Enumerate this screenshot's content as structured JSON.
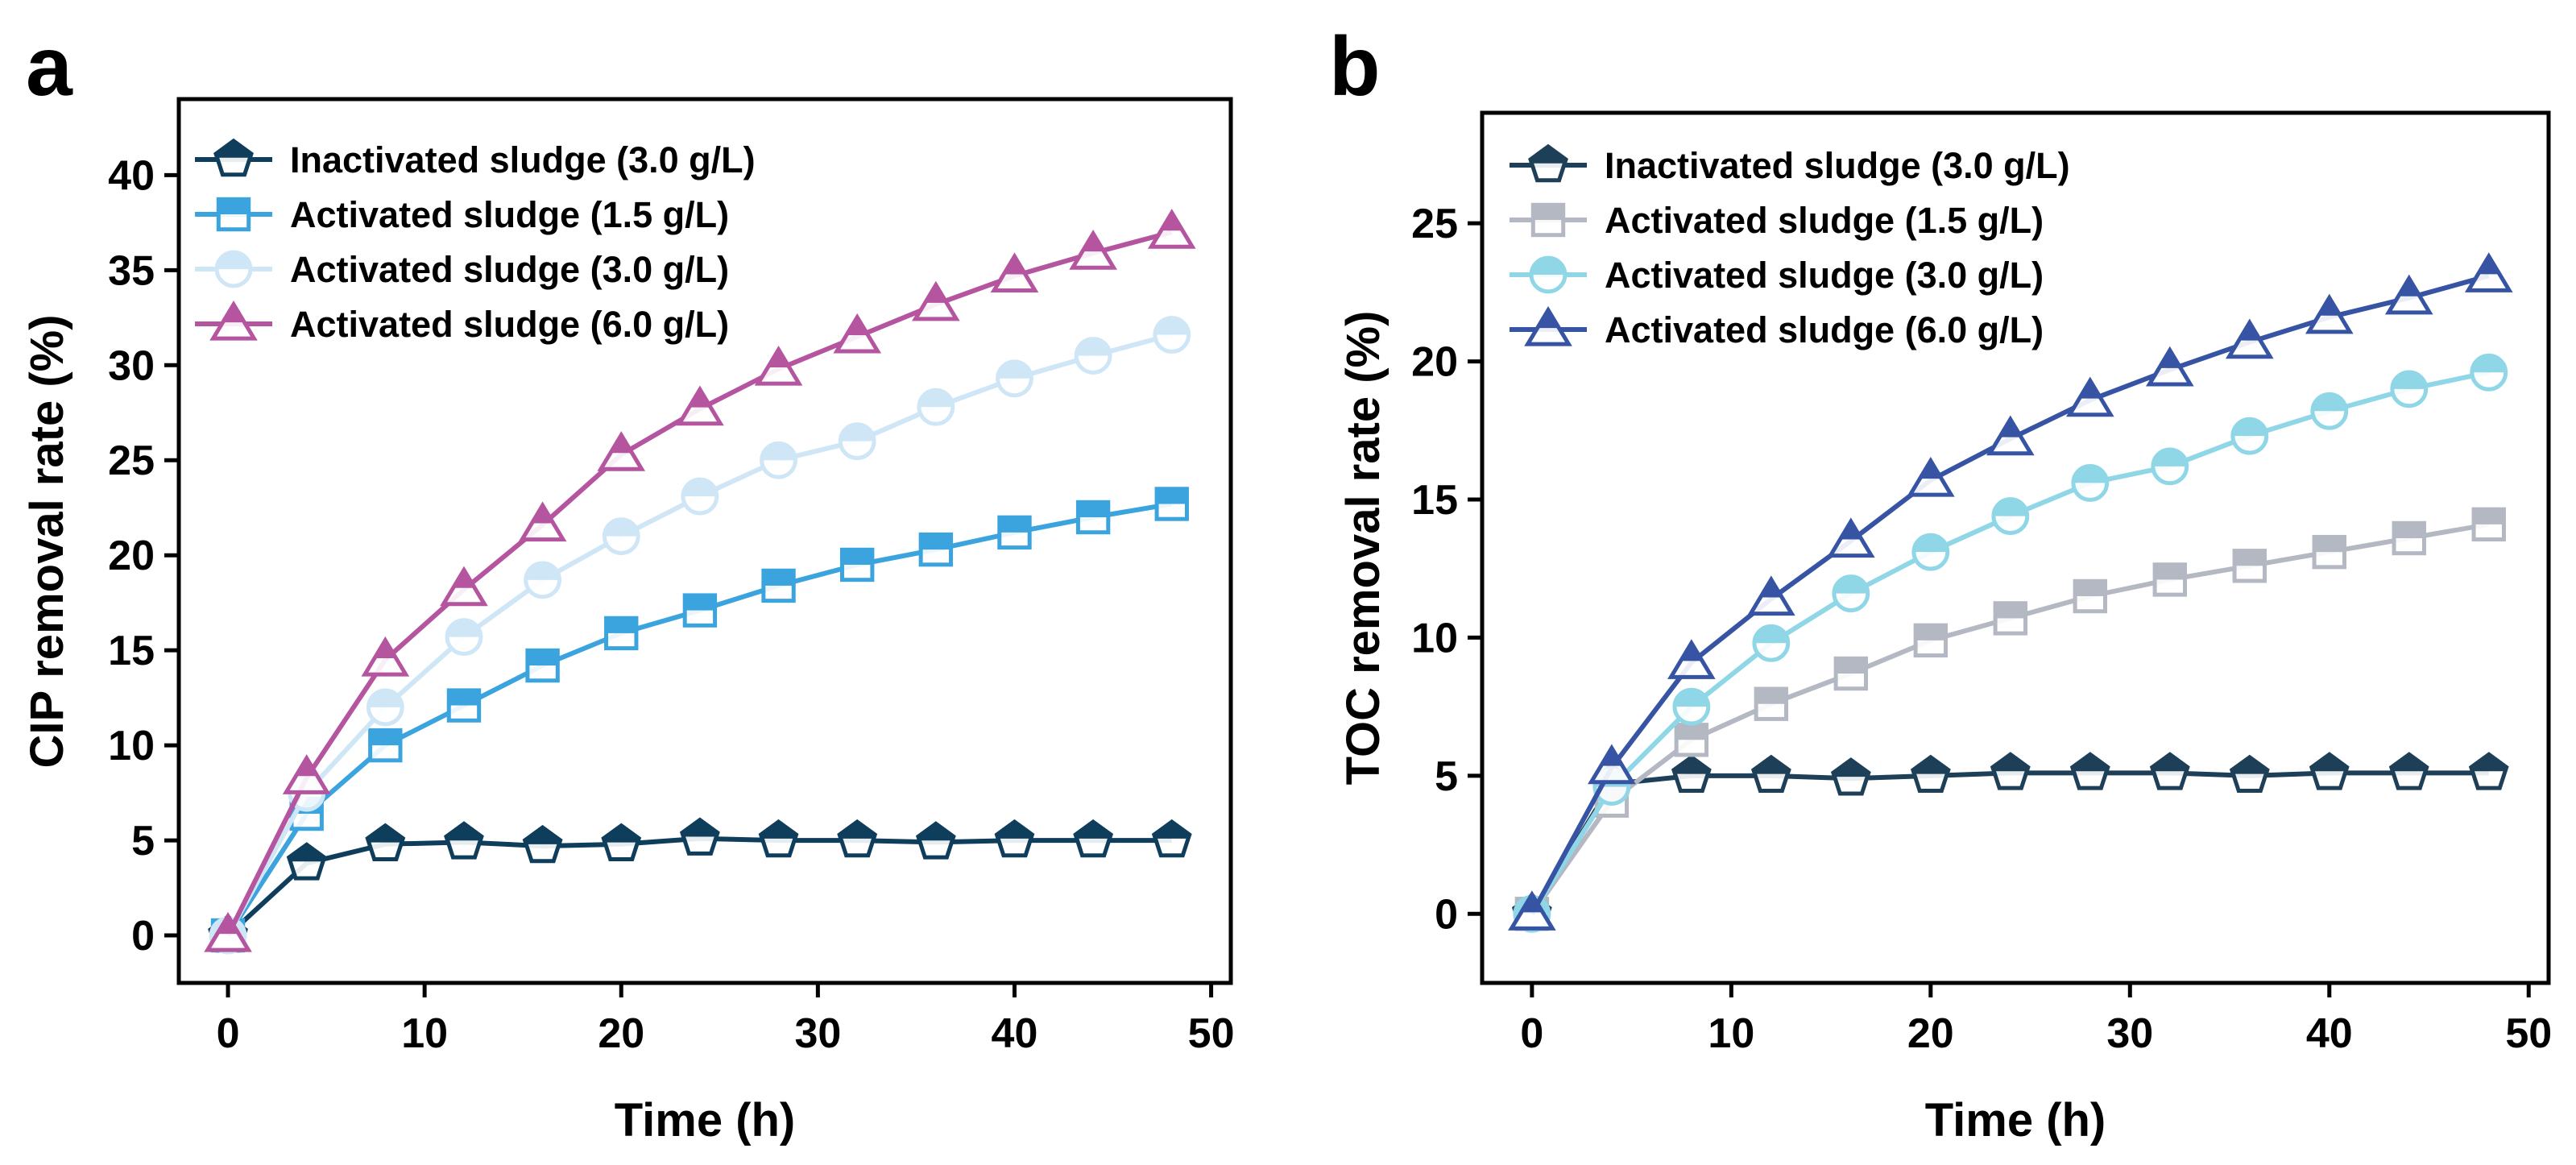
{
  "chart_data": [
    {
      "type": "line",
      "panel_label": "a",
      "xlabel": "Time (h)",
      "ylabel": "CIP removal rate (%)",
      "xlim": [
        -2.5,
        51
      ],
      "ylim": [
        -2.5,
        44
      ],
      "xticks": [
        0,
        10,
        20,
        30,
        40,
        50
      ],
      "xtick_labels": [
        "0",
        "10",
        "20",
        "30",
        "40",
        "50"
      ],
      "yticks": [
        0,
        5,
        10,
        15,
        20,
        25,
        30,
        35,
        40
      ],
      "ytick_labels": [
        "0",
        "5",
        "10",
        "15",
        "20",
        "25",
        "30",
        "35",
        "40"
      ],
      "legend_position": "top-left",
      "x": [
        0,
        4,
        8,
        12,
        16,
        20,
        24,
        28,
        32,
        36,
        40,
        44,
        48
      ],
      "series": [
        {
          "name": "Inactivated sludge (3.0 g/L)",
          "marker": "pentagon",
          "color": "#0f3d5c",
          "values": [
            0,
            3.8,
            4.8,
            4.9,
            4.7,
            4.8,
            5.1,
            5.0,
            5.0,
            4.9,
            5.0,
            5.0,
            5.0
          ]
        },
        {
          "name": "Activated sludge (1.5 g/L)",
          "marker": "square",
          "color": "#3ba4df",
          "values": [
            0,
            6.4,
            10.0,
            12.1,
            14.2,
            15.9,
            17.1,
            18.4,
            19.5,
            20.3,
            21.2,
            22.0,
            22.7
          ]
        },
        {
          "name": "Activated sludge (3.0 g/L)",
          "marker": "circle",
          "color": "#cfe6f6",
          "values": [
            0,
            7.5,
            12.0,
            15.7,
            18.7,
            21.0,
            23.1,
            25.0,
            26.0,
            27.8,
            29.3,
            30.5,
            31.6
          ]
        },
        {
          "name": "Activated sludge (6.0 g/L)",
          "marker": "triangle",
          "color": "#b5549f",
          "values": [
            0,
            8.3,
            14.5,
            18.2,
            21.6,
            25.3,
            27.7,
            29.8,
            31.5,
            33.2,
            34.7,
            35.9,
            37.0
          ]
        }
      ]
    },
    {
      "type": "line",
      "panel_label": "b",
      "xlabel": "Time (h)",
      "ylabel": "TOC removal rate (%)",
      "xlim": [
        -2.5,
        51
      ],
      "ylim": [
        -2.5,
        29
      ],
      "xticks": [
        0,
        10,
        20,
        30,
        40,
        50
      ],
      "xtick_labels": [
        "0",
        "10",
        "20",
        "30",
        "40",
        "50"
      ],
      "yticks": [
        0,
        5,
        10,
        15,
        20,
        25
      ],
      "ytick_labels": [
        "0",
        "5",
        "10",
        "15",
        "20",
        "25"
      ],
      "legend_position": "top-left",
      "x": [
        0,
        4,
        8,
        12,
        16,
        20,
        24,
        28,
        32,
        36,
        40,
        44,
        48
      ],
      "series": [
        {
          "name": "Inactivated sludge (3.0 g/L)",
          "marker": "pentagon",
          "color": "#1e3f58",
          "values": [
            0,
            4.7,
            5.0,
            5.0,
            4.9,
            5.0,
            5.1,
            5.1,
            5.1,
            5.0,
            5.1,
            5.1,
            5.1
          ]
        },
        {
          "name": "Activated sludge (1.5 g/L)",
          "marker": "square",
          "color": "#b3b8c2",
          "values": [
            0,
            4.1,
            6.3,
            7.6,
            8.7,
            9.9,
            10.7,
            11.5,
            12.1,
            12.6,
            13.1,
            13.6,
            14.1
          ]
        },
        {
          "name": "Activated sludge (3.0 g/L)",
          "marker": "circle",
          "color": "#8fd6e6",
          "values": [
            0,
            4.6,
            7.5,
            9.8,
            11.6,
            13.1,
            14.4,
            15.6,
            16.2,
            17.3,
            18.2,
            19.0,
            19.6
          ]
        },
        {
          "name": "Activated sludge (6.0 g/L)",
          "marker": "triangle",
          "color": "#3654a3",
          "values": [
            0,
            5.3,
            9.1,
            11.4,
            13.5,
            15.7,
            17.2,
            18.6,
            19.7,
            20.7,
            21.6,
            22.3,
            23.1
          ]
        }
      ]
    }
  ]
}
